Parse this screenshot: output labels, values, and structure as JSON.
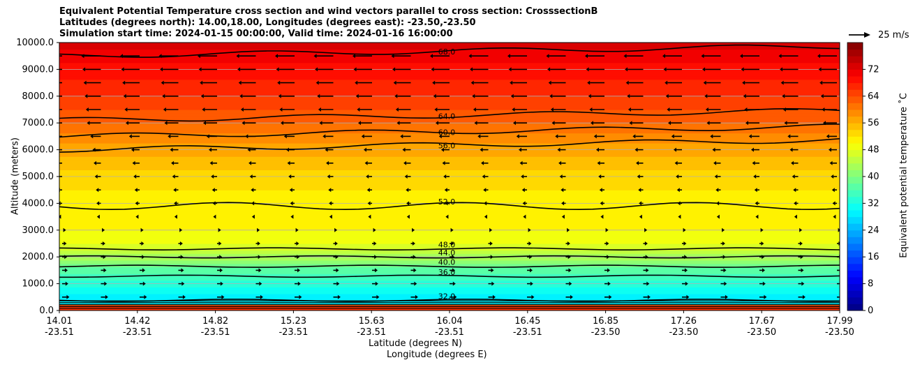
{
  "chart_data": {
    "type": "heatmap",
    "title_lines": [
      "Equivalent Potential Temperature cross section and wind vectors parallel to cross section: CrosssectionB",
      "Latitudes (degrees north): 14.00,18.00, Longitudes (degrees east): -23.50,-23.50",
      "Simulation start time: 2024-01-15 00:00:00, Valid time: 2024-01-16 16:00:00"
    ],
    "xlabel": "Latitude (degrees N)",
    "xlabel2": "Longitude (degrees E)",
    "ylabel": "Altitude (meters)",
    "colorbar_label": "Equivalent potential temperature ˚C",
    "quiver_key_label": "25 m/s",
    "ylim": [
      0,
      10000
    ],
    "y_ticks": [
      "0.0",
      "1000.0",
      "2000.0",
      "3000.0",
      "4000.0",
      "5000.0",
      "6000.0",
      "7000.0",
      "8000.0",
      "9000.0",
      "10000.0"
    ],
    "x_ticks": [
      {
        "lat": "14.01",
        "lon": "-23.51"
      },
      {
        "lat": "14.42",
        "lon": "-23.51"
      },
      {
        "lat": "14.82",
        "lon": "-23.51"
      },
      {
        "lat": "15.23",
        "lon": "-23.51"
      },
      {
        "lat": "15.63",
        "lon": "-23.51"
      },
      {
        "lat": "16.04",
        "lon": "-23.51"
      },
      {
        "lat": "16.45",
        "lon": "-23.51"
      },
      {
        "lat": "16.85",
        "lon": "-23.50"
      },
      {
        "lat": "17.26",
        "lon": "-23.50"
      },
      {
        "lat": "17.67",
        "lon": "-23.50"
      },
      {
        "lat": "17.99",
        "lon": "-23.50"
      }
    ],
    "colorbar_range": [
      0,
      80
    ],
    "colorbar_ticks": [
      "0",
      "8",
      "16",
      "24",
      "32",
      "40",
      "48",
      "56",
      "64",
      "72"
    ],
    "grid": "horizontal",
    "colormap": "jet",
    "theta_e_profile": [
      {
        "alt": 0,
        "value": 70
      },
      {
        "alt": 300,
        "value": 28
      },
      {
        "alt": 1000,
        "value": 33
      },
      {
        "alt": 1500,
        "value": 37
      },
      {
        "alt": 2000,
        "value": 43
      },
      {
        "alt": 2500,
        "value": 48
      },
      {
        "alt": 3000,
        "value": 50
      },
      {
        "alt": 4000,
        "value": 51
      },
      {
        "alt": 5000,
        "value": 53
      },
      {
        "alt": 6000,
        "value": 57
      },
      {
        "alt": 7000,
        "value": 62
      },
      {
        "alt": 8000,
        "value": 66
      },
      {
        "alt": 9000,
        "value": 69
      },
      {
        "alt": 10000,
        "value": 73
      }
    ],
    "contours": [
      {
        "value": 32,
        "label": "32.0",
        "alt": 380
      },
      {
        "value": 36,
        "label": "36.0",
        "alt": 1280
      },
      {
        "value": 40,
        "label": "40.0",
        "alt": 1650
      },
      {
        "value": 44,
        "label": "44.0",
        "alt": 2000
      },
      {
        "value": 48,
        "label": "48.0",
        "alt": 2300
      },
      {
        "value": 52,
        "label": "52.0",
        "alt": 3900
      },
      {
        "value": 56,
        "label": "56.0",
        "alt": 6000
      },
      {
        "value": 60,
        "label": "60.0",
        "alt": 6500
      },
      {
        "value": 64,
        "label": "64.0",
        "alt": 7100
      },
      {
        "value": 68,
        "label": "68.0",
        "alt": 9500
      }
    ],
    "wind_rows": [
      {
        "alt": 9500,
        "u": -15
      },
      {
        "alt": 9000,
        "u": -14
      },
      {
        "alt": 8500,
        "u": -13
      },
      {
        "alt": 8000,
        "u": -12
      },
      {
        "alt": 7500,
        "u": -11
      },
      {
        "alt": 7000,
        "u": -10
      },
      {
        "alt": 6500,
        "u": -7
      },
      {
        "alt": 6000,
        "u": -5
      },
      {
        "alt": 5500,
        "u": -4
      },
      {
        "alt": 5000,
        "u": -3
      },
      {
        "alt": 4500,
        "u": -2
      },
      {
        "alt": 4000,
        "u": -1.5
      },
      {
        "alt": 3500,
        "u": -1
      },
      {
        "alt": 3000,
        "u": 1
      },
      {
        "alt": 2500,
        "u": 1.5
      },
      {
        "alt": 2000,
        "u": 2
      },
      {
        "alt": 1500,
        "u": 2.5
      },
      {
        "alt": 1000,
        "u": 3
      },
      {
        "alt": 500,
        "u": 4
      }
    ]
  }
}
